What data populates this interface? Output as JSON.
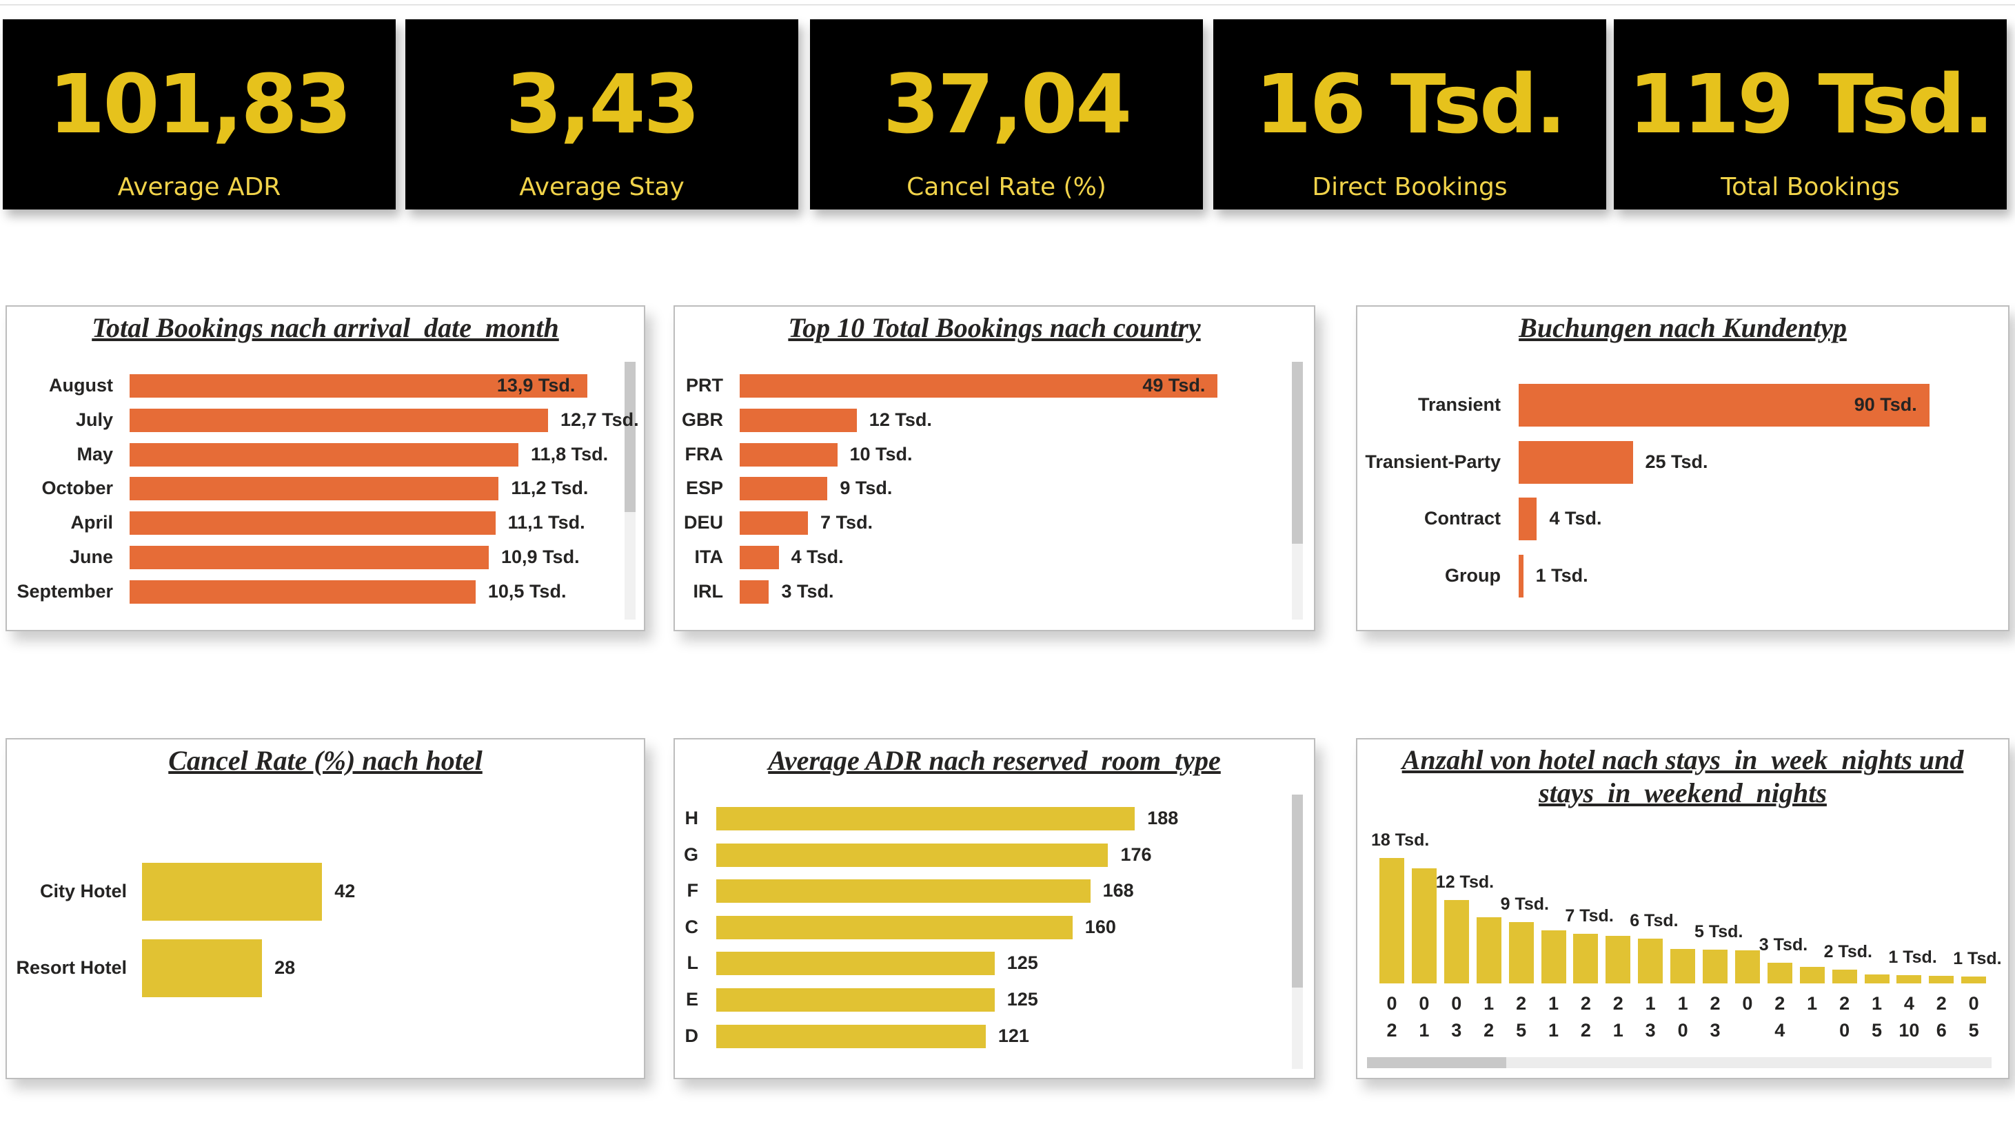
{
  "kpis": [
    {
      "value": "101,83",
      "label": "Average ADR"
    },
    {
      "value": "3,43",
      "label": "Average Stay"
    },
    {
      "value": "37,04",
      "label": "Cancel Rate (%)"
    },
    {
      "value": "16 Tsd.",
      "label": "Direct Bookings"
    },
    {
      "value": "119 Tsd.",
      "label": "Total Bookings"
    }
  ],
  "colors": {
    "kpi_bg": "#000000",
    "kpi_text": "#e6c21c",
    "orange": "#e66c37",
    "yellow": "#e1c233"
  },
  "chart_data": [
    {
      "type": "bar",
      "title": "Total Bookings nach arrival_date_month",
      "categories": [
        "August",
        "July",
        "May",
        "October",
        "April",
        "June",
        "September"
      ],
      "values": [
        13.9,
        12.7,
        11.8,
        11.2,
        11.1,
        10.9,
        10.5
      ],
      "labels": [
        "13,9 Tsd.",
        "12,7 Tsd.",
        "11,8 Tsd.",
        "11,2 Tsd.",
        "11,1 Tsd.",
        "10,9 Tsd.",
        "10,5 Tsd."
      ],
      "unit": "Tsd.",
      "orientation": "horizontal",
      "color": "#e66c37"
    },
    {
      "type": "bar",
      "title": "Top 10 Total Bookings nach country",
      "categories": [
        "PRT",
        "GBR",
        "FRA",
        "ESP",
        "DEU",
        "ITA",
        "IRL"
      ],
      "values": [
        49,
        12,
        10,
        9,
        7,
        4,
        3
      ],
      "labels": [
        "49 Tsd.",
        "12 Tsd.",
        "10 Tsd.",
        "9 Tsd.",
        "7 Tsd.",
        "4 Tsd.",
        "3 Tsd."
      ],
      "unit": "Tsd.",
      "orientation": "horizontal",
      "color": "#e66c37"
    },
    {
      "type": "bar",
      "title": "Buchungen nach Kundentyp",
      "categories": [
        "Transient",
        "Transient-Party",
        "Contract",
        "Group"
      ],
      "values": [
        90,
        25,
        4,
        1
      ],
      "labels": [
        "90 Tsd.",
        "25 Tsd.",
        "4 Tsd.",
        "1 Tsd."
      ],
      "unit": "Tsd.",
      "orientation": "horizontal",
      "color": "#e66c37"
    },
    {
      "type": "bar",
      "title": "Cancel Rate (%) nach hotel",
      "categories": [
        "City Hotel",
        "Resort Hotel"
      ],
      "values": [
        42,
        28
      ],
      "labels": [
        "42",
        "28"
      ],
      "orientation": "horizontal",
      "color": "#e1c233"
    },
    {
      "type": "bar",
      "title": "Average ADR nach reserved_room_type",
      "categories": [
        "H",
        "G",
        "F",
        "C",
        "L",
        "E",
        "D"
      ],
      "values": [
        188,
        176,
        168,
        160,
        125,
        125,
        121
      ],
      "labels": [
        "188",
        "176",
        "168",
        "160",
        "125",
        "125",
        "121"
      ],
      "orientation": "horizontal",
      "color": "#e1c233"
    },
    {
      "type": "bar",
      "title_lines": [
        "Anzahl von hotel nach stays_in_week_nights und",
        "stays_in_weekend_nights"
      ],
      "orientation": "vertical",
      "color": "#e1c233",
      "week_nights": [
        "0",
        "0",
        "0",
        "1",
        "2",
        "1",
        "2",
        "2",
        "1",
        "1",
        "2",
        "0",
        "2",
        "1",
        "2",
        "1",
        "4",
        "2",
        "0"
      ],
      "weekend_nights": [
        "2",
        "1",
        "3",
        "2",
        "5",
        "1",
        "2",
        "1",
        "3",
        "0",
        "3",
        "",
        "4",
        "",
        "0",
        "5",
        "10",
        "6",
        "5"
      ],
      "values": [
        18,
        16.5,
        12,
        9.5,
        8.8,
        7.6,
        7.1,
        6.8,
        6.4,
        5,
        4.9,
        4.8,
        3,
        2.4,
        2,
        1.3,
        1.2,
        1.1,
        1
      ],
      "labels": [
        "18 Tsd.",
        "",
        "12 Tsd.",
        "",
        "9 Tsd.",
        "",
        "7 Tsd.",
        "",
        "6 Tsd.",
        "",
        "5 Tsd.",
        "",
        "3 Tsd.",
        "",
        "2 Tsd.",
        "",
        "1 Tsd.",
        "",
        "1 Tsd."
      ],
      "unit": "Tsd."
    }
  ]
}
